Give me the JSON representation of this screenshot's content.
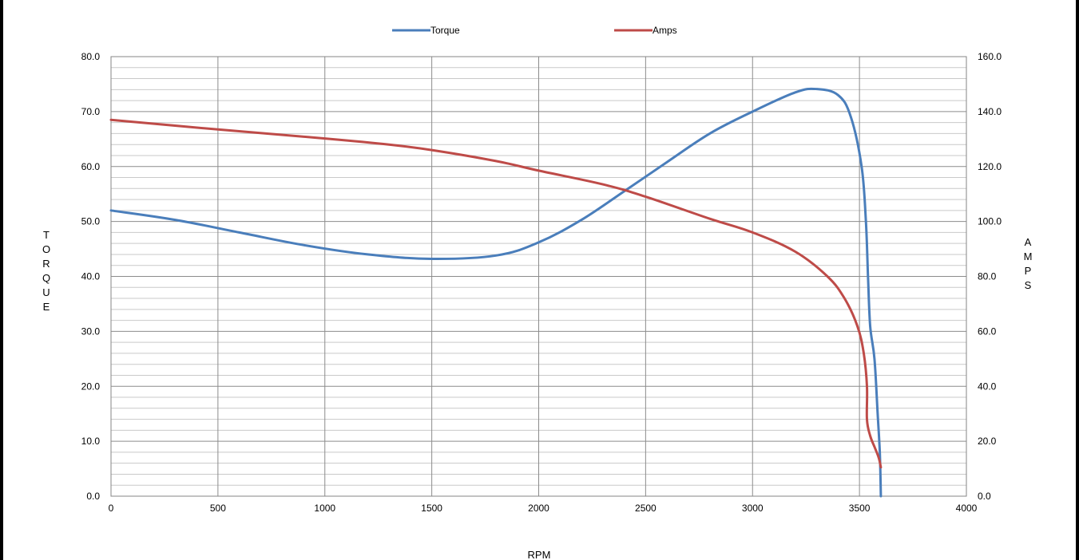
{
  "chart_data": {
    "type": "line",
    "xlabel": "RPM",
    "ylabel_left": "TORQUE",
    "ylabel_left_letters": [
      "T",
      "O",
      "R",
      "Q",
      "U",
      "E"
    ],
    "ylabel_right": "AMPS",
    "ylabel_right_letters": [
      "A",
      "M",
      "P",
      "S"
    ],
    "xlim": [
      0,
      4000
    ],
    "ylim_left": [
      0,
      80
    ],
    "ylim_right": [
      0,
      160
    ],
    "x_ticks": [
      "0",
      "500",
      "1000",
      "1500",
      "2000",
      "2500",
      "3000",
      "3500",
      "4000"
    ],
    "x_tick_values": [
      0,
      500,
      1000,
      1500,
      2000,
      2500,
      3000,
      3500,
      4000
    ],
    "y_left_ticks": [
      "0.0",
      "10.0",
      "20.0",
      "30.0",
      "40.0",
      "50.0",
      "60.0",
      "70.0",
      "80.0"
    ],
    "y_left_tick_values": [
      0,
      10,
      20,
      30,
      40,
      50,
      60,
      70,
      80
    ],
    "y_right_ticks": [
      "0.0",
      "20.0",
      "40.0",
      "60.0",
      "80.0",
      "100.0",
      "120.0",
      "140.0",
      "160.0"
    ],
    "grid": true,
    "legend_position": "top-center",
    "series": [
      {
        "name": "Torque",
        "axis": "left",
        "color": "#4A7EBB",
        "points": [
          [
            0,
            52.0
          ],
          [
            300,
            50.3
          ],
          [
            600,
            48.0
          ],
          [
            900,
            45.7
          ],
          [
            1200,
            44.0
          ],
          [
            1500,
            43.2
          ],
          [
            1800,
            43.8
          ],
          [
            2000,
            46.2
          ],
          [
            2200,
            50.3
          ],
          [
            2400,
            55.5
          ],
          [
            2600,
            60.8
          ],
          [
            2800,
            66.0
          ],
          [
            3000,
            70.0
          ],
          [
            3200,
            73.5
          ],
          [
            3300,
            74.1
          ],
          [
            3400,
            73.0
          ],
          [
            3460,
            69.0
          ],
          [
            3510,
            60.0
          ],
          [
            3530,
            50.0
          ],
          [
            3540,
            40.0
          ],
          [
            3550,
            31.0
          ],
          [
            3570,
            25.0
          ],
          [
            3585,
            15.0
          ],
          [
            3595,
            8.0
          ],
          [
            3600,
            0.0
          ]
        ]
      },
      {
        "name": "Amps",
        "axis": "right",
        "color": "#BE4B48",
        "points": [
          [
            0,
            137.0
          ],
          [
            500,
            133.5
          ],
          [
            1000,
            130.2
          ],
          [
            1300,
            128.0
          ],
          [
            1500,
            126.0
          ],
          [
            1800,
            122.0
          ],
          [
            2000,
            118.5
          ],
          [
            2300,
            113.5
          ],
          [
            2500,
            109.0
          ],
          [
            2800,
            101.0
          ],
          [
            3000,
            96.0
          ],
          [
            3200,
            89.0
          ],
          [
            3350,
            80.0
          ],
          [
            3430,
            72.0
          ],
          [
            3490,
            62.0
          ],
          [
            3520,
            52.0
          ],
          [
            3535,
            40.0
          ],
          [
            3535,
            28.0
          ],
          [
            3550,
            22.0
          ],
          [
            3570,
            18.0
          ],
          [
            3590,
            14.0
          ],
          [
            3600,
            10.5
          ]
        ]
      }
    ]
  }
}
